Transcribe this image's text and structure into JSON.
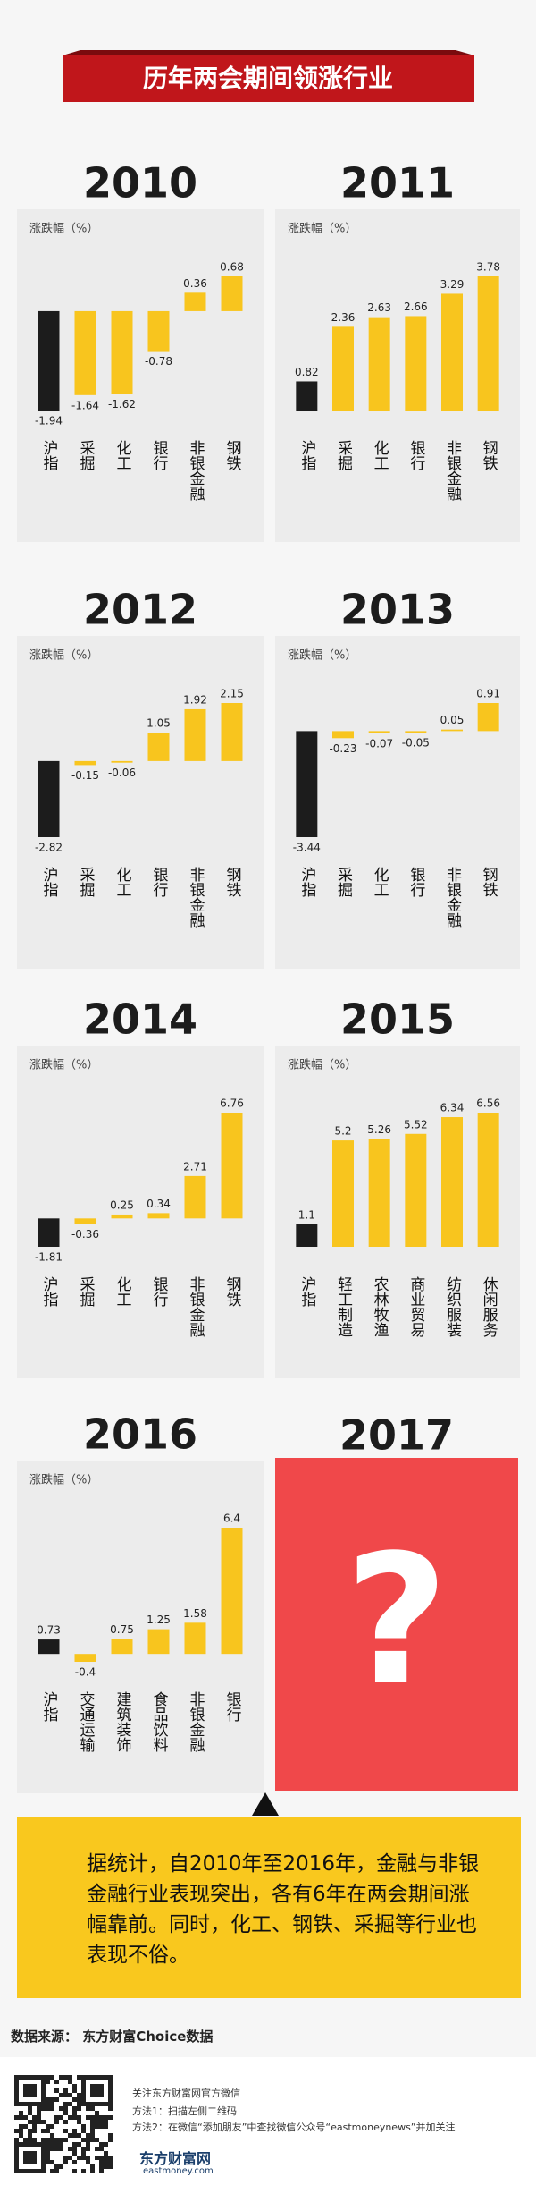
{
  "title": "历年两会期间领涨行业",
  "chart_data": [
    {
      "type": "bar",
      "title": "2010",
      "y_label": "涨跌幅（%）",
      "categories": [
        "沪指",
        "采掘",
        "化工",
        "银行",
        "非银金融",
        "钢铁"
      ],
      "values": [
        -1.94,
        -1.64,
        -1.62,
        -0.78,
        0.36,
        0.68
      ],
      "colors": [
        "#1c1c1c",
        "#f8c51e",
        "#f8c51e",
        "#f8c51e",
        "#f8c51e",
        "#f8c51e"
      ]
    },
    {
      "type": "bar",
      "title": "2011",
      "y_label": "涨跌幅（%）",
      "categories": [
        "沪指",
        "采掘",
        "化工",
        "银行",
        "非银金融",
        "钢铁"
      ],
      "values": [
        0.82,
        2.36,
        2.63,
        2.66,
        3.29,
        3.78
      ],
      "colors": [
        "#1c1c1c",
        "#f8c51e",
        "#f8c51e",
        "#f8c51e",
        "#f8c51e",
        "#f8c51e"
      ]
    },
    {
      "type": "bar",
      "title": "2012",
      "y_label": "涨跌幅（%）",
      "categories": [
        "沪指",
        "采掘",
        "化工",
        "银行",
        "非银金融",
        "钢铁"
      ],
      "values": [
        -2.82,
        -0.15,
        -0.06,
        1.05,
        1.92,
        2.15
      ],
      "colors": [
        "#1c1c1c",
        "#f8c51e",
        "#f8c51e",
        "#f8c51e",
        "#f8c51e",
        "#f8c51e"
      ]
    },
    {
      "type": "bar",
      "title": "2013",
      "y_label": "涨跌幅（%）",
      "categories": [
        "沪指",
        "采掘",
        "化工",
        "银行",
        "非银金融",
        "钢铁"
      ],
      "values": [
        -3.44,
        -0.23,
        -0.07,
        -0.05,
        0.05,
        0.91
      ],
      "colors": [
        "#1c1c1c",
        "#f8c51e",
        "#f8c51e",
        "#f8c51e",
        "#f8c51e",
        "#f8c51e"
      ]
    },
    {
      "type": "bar",
      "title": "2014",
      "y_label": "涨跌幅（%）",
      "categories": [
        "沪指",
        "采掘",
        "化工",
        "银行",
        "非银金融",
        "钢铁"
      ],
      "values": [
        -1.81,
        -0.36,
        0.25,
        0.34,
        2.71,
        6.76
      ],
      "colors": [
        "#1c1c1c",
        "#f8c51e",
        "#f8c51e",
        "#f8c51e",
        "#f8c51e",
        "#f8c51e"
      ]
    },
    {
      "type": "bar",
      "title": "2015",
      "y_label": "涨跌幅（%）",
      "categories": [
        "沪指",
        "轻工制造",
        "农林牧渔",
        "商业贸易",
        "纺织服装",
        "休闲服务"
      ],
      "values": [
        1.1,
        5.2,
        5.26,
        5.52,
        6.34,
        6.56
      ],
      "colors": [
        "#1c1c1c",
        "#f8c51e",
        "#f8c51e",
        "#f8c51e",
        "#f8c51e",
        "#f8c51e"
      ]
    },
    {
      "type": "bar",
      "title": "2016",
      "y_label": "涨跌幅（%）",
      "categories": [
        "沪指",
        "交通运输",
        "建筑装饰",
        "食品饮料",
        "非银金融",
        "银行"
      ],
      "values": [
        0.73,
        -0.4,
        0.75,
        1.25,
        1.58,
        6.4
      ],
      "colors": [
        "#1c1c1c",
        "#f8c51e",
        "#f8c51e",
        "#f8c51e",
        "#f8c51e",
        "#f8c51e"
      ]
    }
  ],
  "teaser": {
    "year": "2017",
    "symbol": "?"
  },
  "note": "据统计，自2010年至2016年，金融与非银金融行业表现突出，各有6年在两会期间涨幅靠前。同时，化工、钢铁、采掘等行业也表现不俗。",
  "footer": {
    "source": "数据来源： 东方财富Choice数据",
    "follow": "关注东方财富网官方微信",
    "method1": "方法1：扫描左侧二维码",
    "method2": "方法2：在微信“添加朋友”中查找微信公众号“eastmoneynews”并加关注",
    "brand": "东方财富网",
    "site": "eastmoney.com"
  }
}
